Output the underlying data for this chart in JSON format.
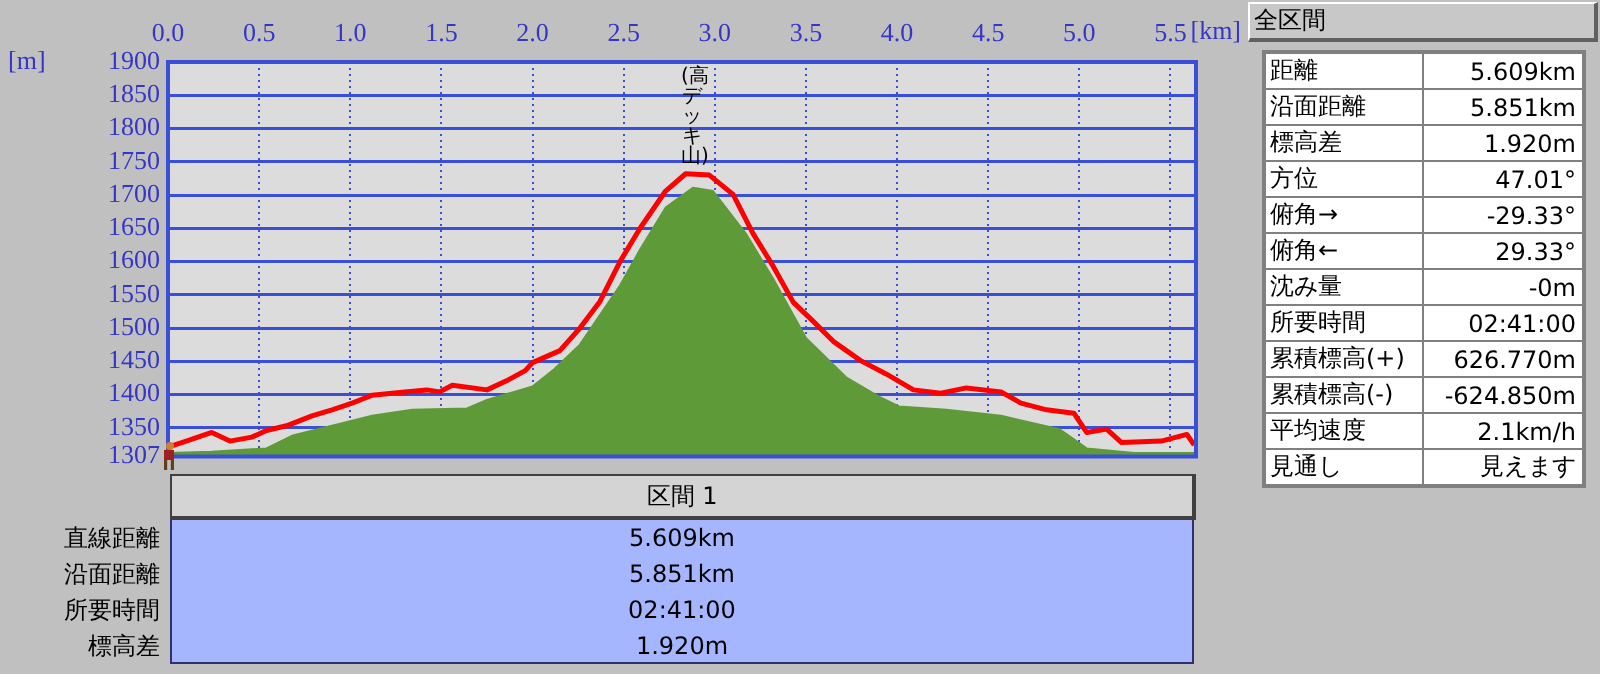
{
  "chart_data": [
    {
      "type": "line",
      "xlabel": "[km]",
      "ylabel": "[m]",
      "xlim": [
        0,
        5.64
      ],
      "ylim": [
        1307,
        1900
      ],
      "xticks": [
        {
          "value": 0,
          "label": "0.0"
        },
        0.5,
        {
          "value": 1,
          "label": "1.0"
        },
        1.5,
        {
          "value": 2,
          "label": "2.0"
        },
        2.5,
        {
          "value": 3,
          "label": "3.0"
        },
        3.5,
        {
          "value": 4,
          "label": "4.0"
        },
        4.5,
        {
          "value": 5,
          "label": "5.0"
        },
        5.5
      ],
      "yticks": [
        1307,
        1350,
        1400,
        1450,
        1500,
        1550,
        1600,
        1650,
        1700,
        1750,
        1800,
        1850,
        1900
      ],
      "grid": true,
      "marker": "none",
      "series": [
        {
          "type": "area",
          "color": "#5f9a38",
          "x": [
            0,
            0.24,
            0.54,
            0.68,
            0.9,
            1.12,
            1.34,
            1.64,
            1.75,
            2.0,
            2.11,
            2.26,
            2.48,
            2.59,
            2.73,
            2.88,
            2.99,
            3.17,
            3.32,
            3.5,
            3.72,
            3.9,
            4.01,
            4.27,
            4.57,
            4.89,
            5.04,
            5.3,
            5.63
          ],
          "values": [
            1312,
            1314,
            1319,
            1338,
            1353,
            1368,
            1377,
            1379,
            1392,
            1412,
            1436,
            1475,
            1564,
            1618,
            1681,
            1711,
            1706,
            1642,
            1574,
            1485,
            1426,
            1397,
            1382,
            1377,
            1368,
            1348,
            1319,
            1312,
            1312
          ]
        },
        {
          "type": "line",
          "color": "#ff0000",
          "x": [
            0,
            0.1,
            0.24,
            0.34,
            0.46,
            0.54,
            0.65,
            0.79,
            0.9,
            1.01,
            1.12,
            1.27,
            1.42,
            1.49,
            1.56,
            1.75,
            1.86,
            1.96,
            2.0,
            2.15,
            2.26,
            2.37,
            2.48,
            2.59,
            2.73,
            2.84,
            2.97,
            3.1,
            3.21,
            3.32,
            3.43,
            3.54,
            3.65,
            3.8,
            3.94,
            4.09,
            4.24,
            4.38,
            4.57,
            4.68,
            4.82,
            4.97,
            5.04,
            5.15,
            5.23,
            5.45,
            5.59,
            5.63
          ],
          "values": [
            1321,
            1330,
            1343,
            1330,
            1336,
            1346,
            1353,
            1368,
            1377,
            1387,
            1399,
            1403,
            1407,
            1404,
            1414,
            1407,
            1421,
            1436,
            1448,
            1466,
            1500,
            1540,
            1600,
            1650,
            1706,
            1732,
            1730,
            1701,
            1642,
            1593,
            1539,
            1510,
            1480,
            1451,
            1431,
            1407,
            1402,
            1410,
            1404,
            1387,
            1377,
            1372,
            1343,
            1348,
            1328,
            1330,
            1340,
            1324
          ]
        }
      ],
      "annotations": [
        {
          "text": "(高デッキ山)",
          "x": 2.88,
          "y": 1732
        }
      ]
    },
    {
      "type": "other",
      "title": "全区間",
      "annotations": [
        "距離",
        "5.609km",
        "沿面距離",
        "5.851km",
        "標高差",
        "1.920m",
        "方位",
        "47.01°",
        "俯角→",
        "-29.33°",
        "俯角←",
        "29.33°",
        "沈み量",
        "-0m",
        "所要時間",
        "02:41:00",
        "累積標高(+)",
        "626.770m",
        "累積標高(-)",
        "-624.850m",
        "平均速度",
        "2.1km/h",
        "見通し",
        "見えます"
      ]
    },
    {
      "type": "other",
      "title": "区間 1",
      "annotations": [
        "直線距離",
        "5.609km",
        "沿面距離",
        "5.851km",
        "所要時間",
        "02:41:00",
        "標高差",
        "1.920m"
      ]
    }
  ]
}
